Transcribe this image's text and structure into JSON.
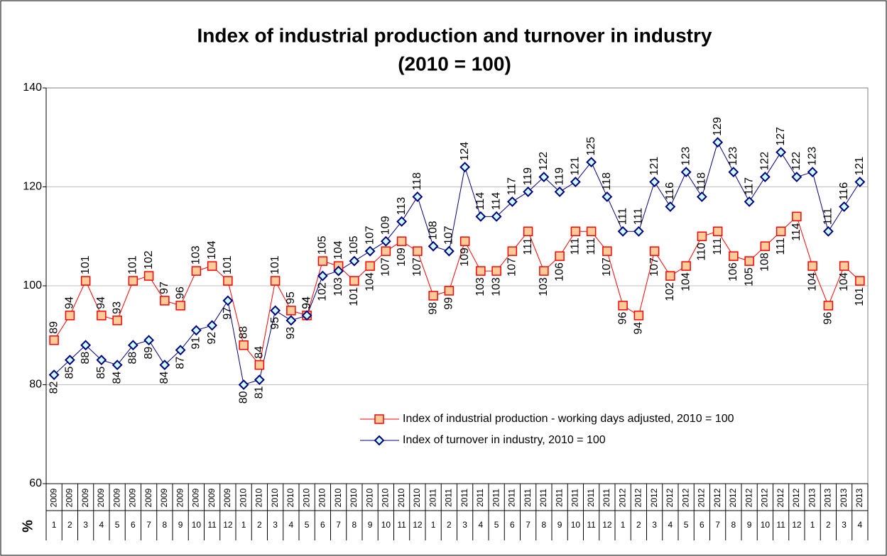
{
  "chart_data": {
    "type": "line",
    "title": "Index of industrial production and turnover in industry",
    "subtitle": "(2010 = 100)",
    "y_label": "%",
    "years": [
      "2009",
      "2009",
      "2009",
      "2009",
      "2009",
      "2009",
      "2009",
      "2009",
      "2009",
      "2009",
      "2009",
      "2009",
      "2010",
      "2010",
      "2010",
      "2010",
      "2010",
      "2010",
      "2010",
      "2010",
      "2010",
      "2010",
      "2010",
      "2010",
      "2011",
      "2011",
      "2011",
      "2011",
      "2011",
      "2011",
      "2011",
      "2011",
      "2011",
      "2011",
      "2011",
      "2011",
      "2012",
      "2012",
      "2012",
      "2012",
      "2012",
      "2012",
      "2012",
      "2012",
      "2012",
      "2012",
      "2012",
      "2012",
      "2013",
      "2013",
      "2013",
      "2013"
    ],
    "categories": [
      "1",
      "2",
      "3",
      "4",
      "5",
      "6",
      "7",
      "8",
      "9",
      "10",
      "11",
      "12",
      "1",
      "2",
      "3",
      "4",
      "5",
      "6",
      "7",
      "8",
      "9",
      "10",
      "11",
      "12",
      "1",
      "2",
      "3",
      "4",
      "5",
      "6",
      "7",
      "8",
      "9",
      "10",
      "11",
      "12",
      "1",
      "2",
      "3",
      "4",
      "5",
      "6",
      "7",
      "8",
      "9",
      "10",
      "11",
      "12",
      "1",
      "2",
      "3",
      "4"
    ],
    "series": [
      {
        "name": "Index of industrial production - working days adjusted, 2010 = 100",
        "color": "#ff0000",
        "marker_fill": "#ffcc99",
        "marker": "square",
        "values": [
          89,
          94,
          101,
          94,
          93,
          101,
          102,
          97,
          96,
          103,
          104,
          101,
          88,
          84,
          101,
          95,
          94,
          105,
          104,
          101,
          104,
          107,
          109,
          107,
          98,
          99,
          109,
          103,
          103,
          107,
          111,
          103,
          106,
          111,
          111,
          107,
          96,
          94,
          107,
          102,
          104,
          110,
          111,
          106,
          105,
          108,
          111,
          114,
          104,
          96,
          104,
          101
        ]
      },
      {
        "name": "Index of turnover in industry, 2010 = 100",
        "color": "#000080",
        "marker_fill": "#ccffff",
        "marker": "diamond",
        "values": [
          82,
          85,
          88,
          85,
          84,
          88,
          89,
          84,
          87,
          91,
          92,
          97,
          80,
          81,
          95,
          93,
          94,
          102,
          103,
          105,
          107,
          109,
          113,
          118,
          108,
          107,
          124,
          114,
          114,
          117,
          119,
          122,
          119,
          121,
          125,
          118,
          111,
          111,
          121,
          116,
          123,
          118,
          129,
          123,
          117,
          122,
          127,
          122,
          123,
          111,
          116,
          121
        ]
      }
    ],
    "ylim": [
      60,
      140
    ],
    "yticks": [
      60,
      80,
      100,
      120,
      140
    ],
    "grid": true
  }
}
